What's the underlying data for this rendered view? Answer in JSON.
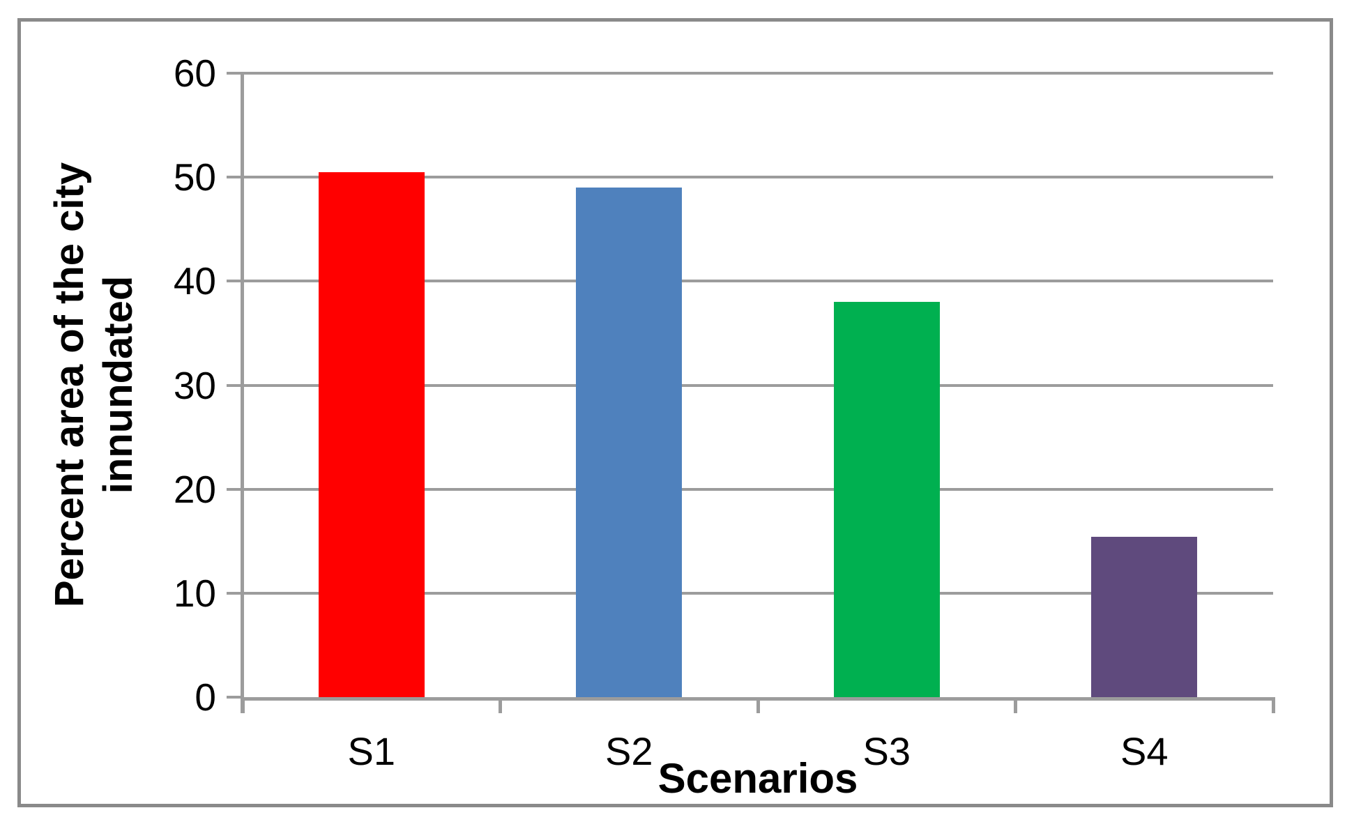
{
  "chart_data": {
    "type": "bar",
    "title": "",
    "xlabel": "Scenarios",
    "ylabel": "Percent area of the city innundated",
    "ylabel_lines": [
      "Percent area of the city",
      "innundated"
    ],
    "categories": [
      "S1",
      "S2",
      "S3",
      "S4"
    ],
    "values": [
      50.5,
      49,
      38,
      15.4
    ],
    "ylim": [
      0,
      60
    ],
    "ytick_interval": 10,
    "ytick_labels": [
      "0",
      "10",
      "20",
      "30",
      "40",
      "50",
      "60"
    ],
    "grid": "horizontal gridlines every 10 units",
    "legend_position": "none",
    "bar_colors": [
      "#FF0000",
      "#4F81BD",
      "#00B050",
      "#5F4A7D"
    ],
    "gridline_color": "#9C9C9C",
    "axis_color": "#9C9C9C",
    "frame_border_color": "#8A8A8A",
    "text_color": "#000000",
    "background_color": "#FFFFFF"
  }
}
